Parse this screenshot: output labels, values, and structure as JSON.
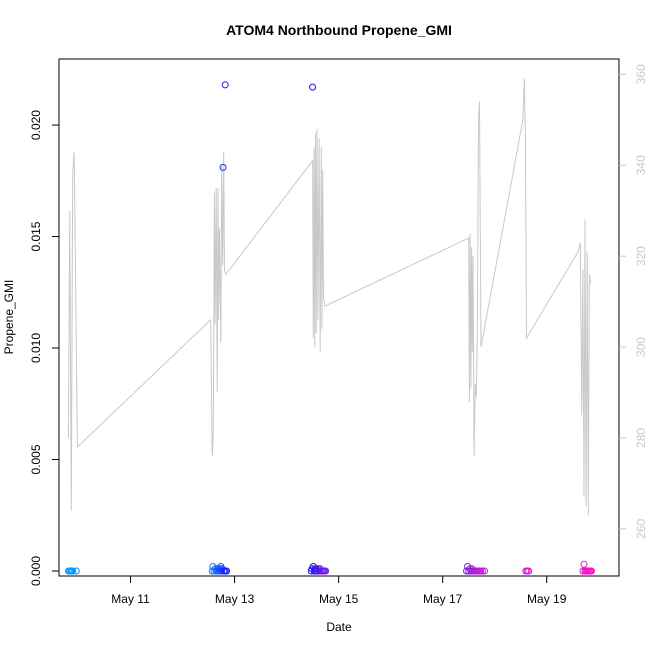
{
  "chart_data": {
    "type": "scatter",
    "title": "ATOM4 Northbound Propene_GMI",
    "xlabel": "Date",
    "ylabel": "Propene_GMI",
    "x_ticks": [
      "May 11",
      "May 13",
      "May 15",
      "May 17",
      "May 19"
    ],
    "x_tick_dates": [
      "2016-05-11",
      "2016-05-13",
      "2016-05-15",
      "2016-05-17",
      "2016-05-19"
    ],
    "xlim": [
      "2016-05-09T15:00",
      "2016-05-20T09:20"
    ],
    "ylim": [
      0,
      0.0222
    ],
    "y_ticks": [
      0.0,
      0.005,
      0.01,
      0.015,
      0.02
    ],
    "y_tick_labels": [
      "0.000",
      "0.005",
      "0.010",
      "0.015",
      "0.020"
    ],
    "y2_ticks": [
      260,
      280,
      300,
      320,
      340,
      360
    ],
    "y2lim": [
      250.5,
      362.5
    ],
    "grid": false,
    "legend": "none",
    "colors": {
      "line": "#c8c8c8",
      "axis": "#000000",
      "right_axis": "#c8c8c8",
      "points_gradient": [
        "#00aaff",
        "#1c4cff",
        "#1a10ee",
        "#7a1ae8",
        "#c81ad8",
        "#ff10c0"
      ]
    },
    "scatter_series": [
      {
        "values": [
          [
            "2016-05-09T19:20",
            0.0
          ],
          [
            "2016-05-09T19:50",
            0.0
          ],
          [
            "2016-05-09T20:20",
            0.0
          ],
          [
            "2016-05-09T20:50",
            0.0
          ],
          [
            "2016-05-09T21:20",
            0.0
          ],
          [
            "2016-05-09T23:00",
            0.0
          ],
          [
            "2016-05-12T13:40",
            0.0
          ],
          [
            "2016-05-12T14:00",
            0.0002
          ],
          [
            "2016-05-12T14:30",
            0.0
          ],
          [
            "2016-05-12T15:00",
            0.0001
          ],
          [
            "2016-05-12T15:30",
            0.0
          ],
          [
            "2016-05-12T16:00",
            0.0001
          ],
          [
            "2016-05-12T16:20",
            0.0
          ],
          [
            "2016-05-12T16:40",
            0.0001
          ],
          [
            "2016-05-12T17:00",
            0.0
          ],
          [
            "2016-05-12T17:20",
            0.0001
          ],
          [
            "2016-05-12T17:40",
            0.0002
          ],
          [
            "2016-05-12T18:00",
            0.0
          ],
          [
            "2016-05-12T18:20",
            0.0001
          ],
          [
            "2016-05-12T18:40",
            0.0181
          ],
          [
            "2016-05-12T19:00",
            0.0
          ],
          [
            "2016-05-12T19:20",
            0.0
          ],
          [
            "2016-05-12T19:40",
            0.0218
          ],
          [
            "2016-05-12T20:00",
            0.0
          ],
          [
            "2016-05-12T20:20",
            0.0
          ],
          [
            "2016-05-14T11:20",
            0.0
          ],
          [
            "2016-05-14T11:40",
            0.0001
          ],
          [
            "2016-05-14T12:00",
            0.0217
          ],
          [
            "2016-05-14T12:20",
            0.0002
          ],
          [
            "2016-05-14T12:40",
            0.0
          ],
          [
            "2016-05-14T13:00",
            0.0001
          ],
          [
            "2016-05-14T13:20",
            0.0
          ],
          [
            "2016-05-14T13:40",
            0.0001
          ],
          [
            "2016-05-14T14:00",
            0.0
          ],
          [
            "2016-05-14T14:30",
            0.0001
          ],
          [
            "2016-05-14T15:00",
            0.0
          ],
          [
            "2016-05-14T15:30",
            0.0001
          ],
          [
            "2016-05-14T16:00",
            0.0
          ],
          [
            "2016-05-14T16:30",
            0.0
          ],
          [
            "2016-05-14T17:00",
            0.0
          ],
          [
            "2016-05-14T17:30",
            0.0
          ],
          [
            "2016-05-14T18:00",
            0.0
          ],
          [
            "2016-05-17T11:00",
            0.0
          ],
          [
            "2016-05-17T11:30",
            0.0002
          ],
          [
            "2016-05-17T12:00",
            0.0
          ],
          [
            "2016-05-17T12:30",
            0.0001
          ],
          [
            "2016-05-17T13:00",
            0.0
          ],
          [
            "2016-05-17T13:30",
            0.0001
          ],
          [
            "2016-05-17T14:00",
            0.0
          ],
          [
            "2016-05-17T14:30",
            0.0
          ],
          [
            "2016-05-17T15:00",
            0.0
          ],
          [
            "2016-05-17T15:30",
            0.0
          ],
          [
            "2016-05-17T16:00",
            0.0
          ],
          [
            "2016-05-17T16:30",
            0.0
          ],
          [
            "2016-05-17T17:00",
            0.0
          ],
          [
            "2016-05-17T17:30",
            0.0
          ],
          [
            "2016-05-17T18:20",
            0.0
          ],
          [
            "2016-05-17T19:20",
            0.0
          ],
          [
            "2016-05-18T14:20",
            0.0
          ],
          [
            "2016-05-18T15:00",
            0.0
          ],
          [
            "2016-05-18T15:40",
            0.0
          ],
          [
            "2016-05-19T16:40",
            0.0
          ],
          [
            "2016-05-19T17:10",
            0.0003
          ],
          [
            "2016-05-19T17:40",
            0.0
          ],
          [
            "2016-05-19T18:10",
            0.0
          ],
          [
            "2016-05-19T18:40",
            0.0
          ],
          [
            "2016-05-19T19:10",
            0.0
          ],
          [
            "2016-05-19T19:40",
            0.0
          ],
          [
            "2016-05-19T20:10",
            0.0
          ],
          [
            "2016-05-19T20:40",
            0.0
          ]
        ]
      }
    ],
    "line_series": [
      {
        "axis": "right",
        "values": [
          [
            "2016-05-09T19:20",
            280
          ],
          [
            "2016-05-09T20:00",
            330
          ],
          [
            "2016-05-09T20:40",
            264
          ],
          [
            "2016-05-09T21:20",
            338
          ],
          [
            "2016-05-09T22:00",
            343
          ],
          [
            "2016-05-09T23:30",
            278
          ],
          [
            "2016-05-12T13:00",
            306
          ],
          [
            "2016-05-12T13:40",
            276
          ],
          [
            "2016-05-12T14:10",
            281
          ],
          [
            "2016-05-12T14:40",
            334
          ],
          [
            "2016-05-12T15:00",
            305
          ],
          [
            "2016-05-12T15:30",
            335
          ],
          [
            "2016-05-12T16:00",
            290
          ],
          [
            "2016-05-12T16:20",
            335
          ],
          [
            "2016-05-12T16:40",
            306
          ],
          [
            "2016-05-12T17:00",
            326
          ],
          [
            "2016-05-12T17:40",
            301
          ],
          [
            "2016-05-12T18:00",
            340
          ],
          [
            "2016-05-12T18:30",
            318
          ],
          [
            "2016-05-12T19:00",
            343
          ],
          [
            "2016-05-12T19:20",
            317
          ],
          [
            "2016-05-12T20:00",
            316
          ],
          [
            "2016-05-14T12:00",
            341
          ],
          [
            "2016-05-14T12:20",
            302
          ],
          [
            "2016-05-14T12:40",
            344
          ],
          [
            "2016-05-14T13:00",
            300
          ],
          [
            "2016-05-14T13:20",
            347
          ],
          [
            "2016-05-14T13:40",
            303
          ],
          [
            "2016-05-14T14:00",
            348
          ],
          [
            "2016-05-14T14:30",
            306
          ],
          [
            "2016-05-14T15:00",
            346
          ],
          [
            "2016-05-14T15:30",
            299
          ],
          [
            "2016-05-14T16:00",
            344
          ],
          [
            "2016-05-14T16:20",
            304
          ],
          [
            "2016-05-14T16:40",
            339
          ],
          [
            "2016-05-14T17:00",
            311
          ],
          [
            "2016-05-14T17:40",
            309
          ],
          [
            "2016-05-17T12:00",
            324
          ],
          [
            "2016-05-17T12:20",
            288
          ],
          [
            "2016-05-17T12:40",
            325
          ],
          [
            "2016-05-17T13:00",
            291
          ],
          [
            "2016-05-17T13:20",
            322
          ],
          [
            "2016-05-17T13:40",
            299
          ],
          [
            "2016-05-17T14:00",
            320
          ],
          [
            "2016-05-17T14:30",
            276
          ],
          [
            "2016-05-17T15:00",
            292
          ],
          [
            "2016-05-17T15:30",
            289
          ],
          [
            "2016-05-17T16:00",
            305
          ],
          [
            "2016-05-17T16:30",
            350
          ],
          [
            "2016-05-17T17:00",
            354
          ],
          [
            "2016-05-17T17:40",
            300
          ],
          [
            "2016-05-18T13:00",
            350
          ],
          [
            "2016-05-18T13:40",
            359
          ],
          [
            "2016-05-18T14:10",
            347
          ],
          [
            "2016-05-18T14:40",
            302
          ],
          [
            "2016-05-19T14:30",
            321
          ],
          [
            "2016-05-19T15:30",
            323
          ],
          [
            "2016-05-19T16:10",
            285
          ],
          [
            "2016-05-19T16:40",
            317
          ],
          [
            "2016-05-19T17:10",
            267
          ],
          [
            "2016-05-19T17:40",
            328
          ],
          [
            "2016-05-19T18:10",
            265
          ],
          [
            "2016-05-19T18:40",
            321
          ],
          [
            "2016-05-19T19:10",
            263
          ],
          [
            "2016-05-19T19:40",
            316
          ],
          [
            "2016-05-19T20:10",
            314
          ]
        ]
      }
    ]
  }
}
